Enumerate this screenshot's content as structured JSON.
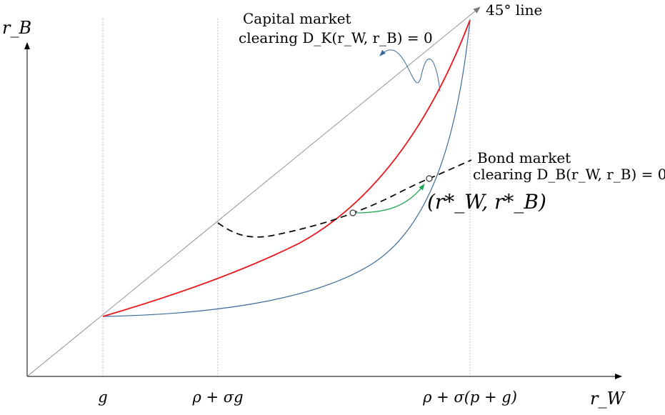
{
  "axes": {
    "y_label": "r_B",
    "x_label": "r_W"
  },
  "ticks": [
    {
      "id": "g",
      "label": "g"
    },
    {
      "id": "rho_sigma_g",
      "label": "ρ + σg"
    },
    {
      "id": "rho_sigma_pg",
      "label": "ρ + σ(p + g)"
    }
  ],
  "annotations": {
    "line45": "45° line",
    "capital_title": "Capital market",
    "capital_eq": "clearing D_K(r_W, r_B) = 0",
    "bond_title": "Bond market",
    "bond_eq": "clearing D_B(r_W, r_B) = 0",
    "equilibrium": "(r*_W, r*_B)"
  },
  "colors": {
    "capital_curve": "#e8161c",
    "blue_curve": "#3a6a9a",
    "bond_curve": "#000000",
    "arrow_green": "#1ea650",
    "reference": "#8a8a8a"
  }
}
